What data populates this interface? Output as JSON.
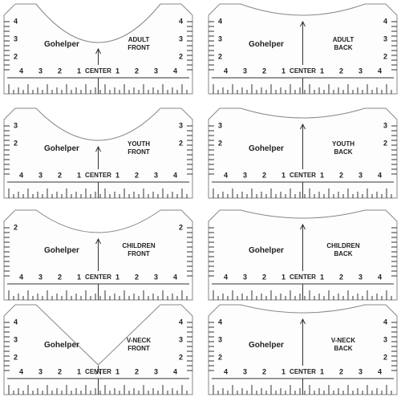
{
  "rulers": [
    {
      "brand": "Gohelper",
      "label": [
        "ADULT",
        "FRONT"
      ],
      "center": "CENTER",
      "scale": [
        "4",
        "3",
        "2",
        "1",
        "1",
        "2",
        "3",
        "4"
      ],
      "left_scale": [
        "4",
        "3",
        "2"
      ],
      "right_scale": [
        "4",
        "3",
        "2"
      ]
    },
    {
      "brand": "Gohelper",
      "label": [
        "ADULT",
        "BACK"
      ],
      "center": "CENTER",
      "scale": [
        "4",
        "3",
        "2",
        "1",
        "1",
        "2",
        "3",
        "4"
      ],
      "left_scale": [
        "4",
        "3",
        "2"
      ],
      "right_scale": [
        "4",
        "3",
        "2"
      ]
    },
    {
      "brand": "Gohelper",
      "label": [
        "YOUTH",
        "FRONT"
      ],
      "center": "CENTER",
      "scale": [
        "4",
        "3",
        "2",
        "1",
        "1",
        "2",
        "3",
        "4"
      ],
      "left_scale": [
        "3",
        "2"
      ],
      "right_scale": [
        "3",
        "2"
      ]
    },
    {
      "brand": "Gohelper",
      "label": [
        "YOUTH",
        "BACK"
      ],
      "center": "CENTER",
      "scale": [
        "4",
        "3",
        "2",
        "1",
        "1",
        "2",
        "3",
        "4"
      ],
      "left_scale": [
        "3",
        "2"
      ],
      "right_scale": [
        "3",
        "2"
      ]
    },
    {
      "brand": "Gohelper",
      "label": [
        "CHILDREN",
        "FRONT"
      ],
      "center": "CENTER",
      "scale": [
        "4",
        "3",
        "2",
        "1",
        "1",
        "2",
        "3",
        "4"
      ],
      "left_scale": [
        "2"
      ],
      "right_scale": [
        "2"
      ]
    },
    {
      "brand": "Gohelper",
      "label": [
        "CHILDREN",
        "BACK"
      ],
      "center": "CENTER",
      "scale": [
        "4",
        "3",
        "2",
        "1",
        "1",
        "2",
        "3",
        "4"
      ],
      "left_scale": [],
      "right_scale": []
    },
    {
      "brand": "Gohelper",
      "label": [
        "V-NECK",
        "FRONT"
      ],
      "center": "CENTER",
      "scale": [
        "4",
        "3",
        "2",
        "1",
        "1",
        "2",
        "3",
        "4"
      ],
      "left_scale": [
        "4",
        "3",
        "2"
      ],
      "right_scale": [
        "4",
        "3",
        "2"
      ]
    },
    {
      "brand": "Gohelper",
      "label": [
        "V-NECK",
        "BACK"
      ],
      "center": "CENTER",
      "scale": [
        "4",
        "3",
        "2",
        "1",
        "1",
        "2",
        "3",
        "4"
      ],
      "left_scale": [
        "4",
        "3",
        "2"
      ],
      "right_scale": [
        "4",
        "3",
        "2"
      ]
    }
  ]
}
